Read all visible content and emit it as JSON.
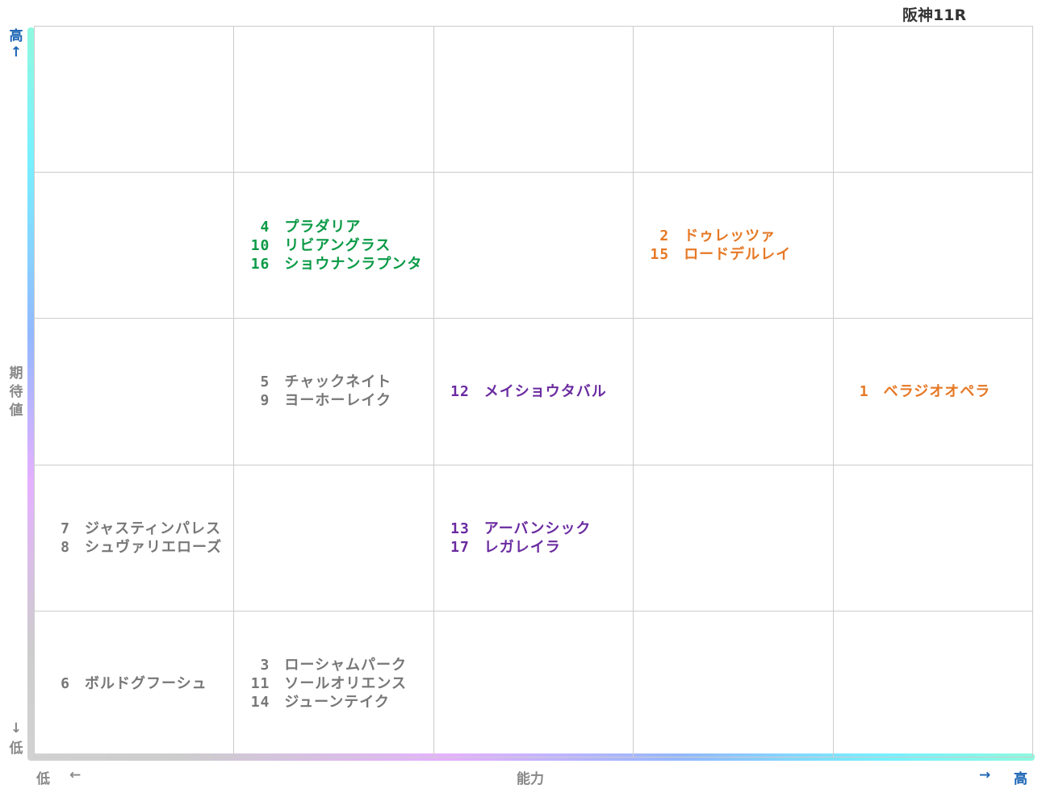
{
  "race": "阪神11R",
  "axes": {
    "y_high": "高",
    "y_up_arrow": "↑",
    "y_label_chars": [
      "期",
      "待",
      "値"
    ],
    "y_down_arrow": "↓",
    "y_low": "低",
    "x_low": "低",
    "x_left_arrow": "←",
    "x_label": "能力",
    "x_right_arrow": "→",
    "x_high": "高"
  },
  "colors": {
    "green": "#0a9a46",
    "orange": "#e67824",
    "purple": "#6a2aa0",
    "gray": "#777777",
    "axis_blue": "#1a64b4",
    "axis_gray": "#888888"
  },
  "chart_data": {
    "type": "table",
    "x_label": "能力",
    "y_label": "期待値",
    "x_levels": 5,
    "y_levels": 5,
    "horses": [
      {
        "num": "4",
        "name": "プラダリア",
        "ability": 2,
        "expectation": 4,
        "color": "green"
      },
      {
        "num": "10",
        "name": "リビアングラス",
        "ability": 2,
        "expectation": 4,
        "color": "green"
      },
      {
        "num": "16",
        "name": "ショウナンラプンタ",
        "ability": 2,
        "expectation": 4,
        "color": "green"
      },
      {
        "num": "2",
        "name": "ドゥレッツァ",
        "ability": 4,
        "expectation": 4,
        "color": "orange"
      },
      {
        "num": "15",
        "name": "ロードデルレイ",
        "ability": 4,
        "expectation": 4,
        "color": "orange"
      },
      {
        "num": "5",
        "name": "チャックネイト",
        "ability": 2,
        "expectation": 3,
        "color": "gray"
      },
      {
        "num": "9",
        "name": "ヨーホーレイク",
        "ability": 2,
        "expectation": 3,
        "color": "gray"
      },
      {
        "num": "12",
        "name": "メイショウタバル",
        "ability": 3,
        "expectation": 3,
        "color": "purple"
      },
      {
        "num": "1",
        "name": "ベラジオオペラ",
        "ability": 5,
        "expectation": 3,
        "color": "orange"
      },
      {
        "num": "7",
        "name": "ジャスティンパレス",
        "ability": 1,
        "expectation": 2,
        "color": "gray"
      },
      {
        "num": "8",
        "name": "シュヴァリエローズ",
        "ability": 1,
        "expectation": 2,
        "color": "gray"
      },
      {
        "num": "13",
        "name": "アーバンシック",
        "ability": 3,
        "expectation": 2,
        "color": "purple"
      },
      {
        "num": "17",
        "name": "レガレイラ",
        "ability": 3,
        "expectation": 2,
        "color": "purple"
      },
      {
        "num": "6",
        "name": "ボルドグフーシュ",
        "ability": 1,
        "expectation": 1,
        "color": "gray"
      },
      {
        "num": "3",
        "name": "ローシャムパーク",
        "ability": 2,
        "expectation": 1,
        "color": "gray"
      },
      {
        "num": "11",
        "name": "ソールオリエンス",
        "ability": 2,
        "expectation": 1,
        "color": "gray"
      },
      {
        "num": "14",
        "name": "ジューンテイク",
        "ability": 2,
        "expectation": 1,
        "color": "gray"
      }
    ]
  }
}
